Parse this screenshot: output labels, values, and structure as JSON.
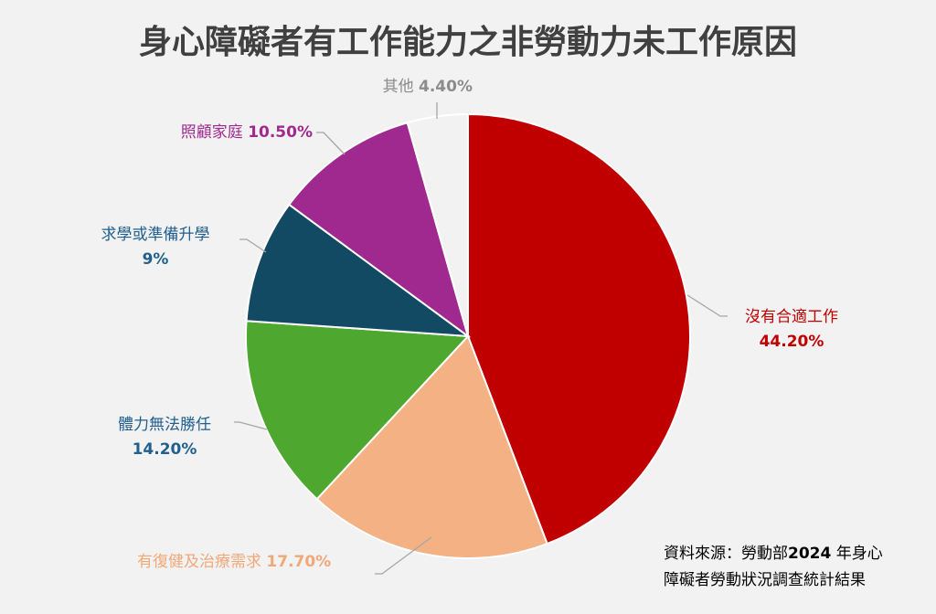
{
  "chart_data": {
    "type": "pie",
    "title": "身心障礙者有工作能力之非勞動力未工作原因",
    "start_angle_deg": 0,
    "direction": "clockwise",
    "slices": [
      {
        "label": "沒有合適工作",
        "value": 44.2,
        "value_label": "44.20%",
        "color": "#c00000",
        "text_color": "#c00000"
      },
      {
        "label": "有復健及治療需求",
        "value": 17.7,
        "value_label": "17.70%",
        "color": "#f4b183",
        "text_color": "#f0a878"
      },
      {
        "label": "體力無法勝任",
        "value": 14.2,
        "value_label": "14.20%",
        "color": "#4ea72e",
        "text_color": "#215f8f"
      },
      {
        "label": "求學或準備升學",
        "value": 9,
        "value_label": "9%",
        "color": "#124a63",
        "text_color": "#215f8f"
      },
      {
        "label": "照顧家庭",
        "value": 10.5,
        "value_label": "10.50%",
        "color": "#a0298f",
        "text_color": "#a0298f"
      },
      {
        "label": "其他",
        "value": 4.4,
        "value_label": "4.40%",
        "color": "#f2f2f2",
        "text_color": "#8c8c8c"
      }
    ],
    "legend": "none",
    "slice_border_color": "#ffffff"
  },
  "source_note": {
    "line1_prefix": "資料來源：勞動部",
    "line1_year": "2024",
    "line1_suffix": " 年身心",
    "line2": "障礙者勞動狀況調查統計結果"
  }
}
